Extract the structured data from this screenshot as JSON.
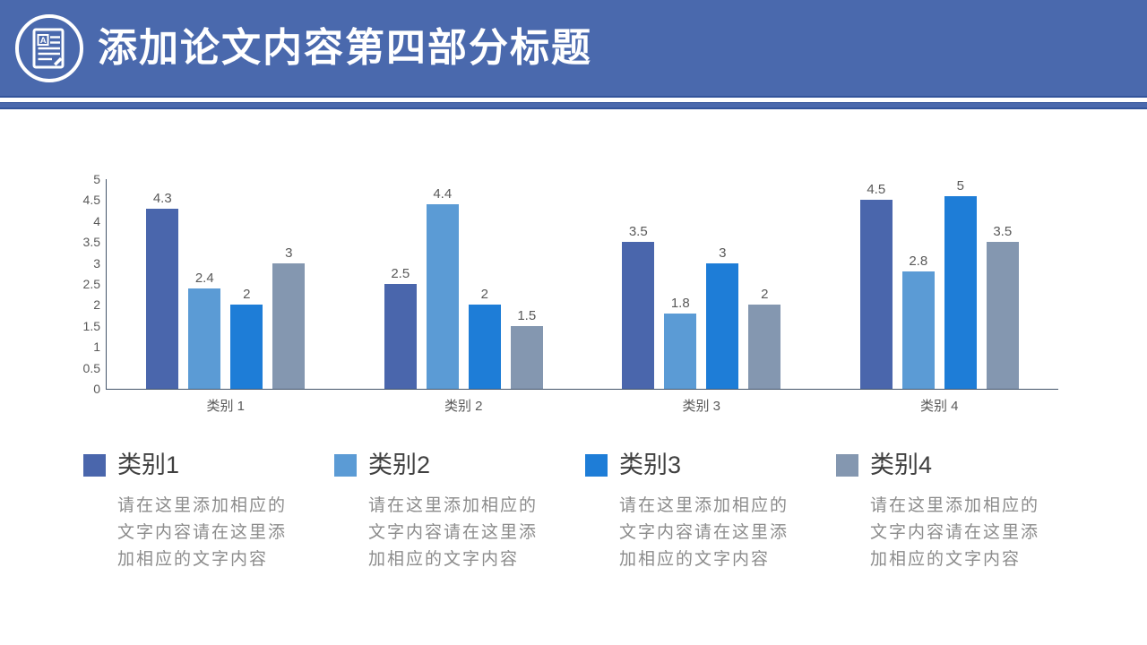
{
  "header": {
    "title": "添加论文内容第四部分标题",
    "icon": "document-pencil-icon",
    "background_color": "#4A69AD",
    "accent_line_color": "#33549B",
    "title_color": "#FFFFFF"
  },
  "chart_data": {
    "type": "bar",
    "title": "",
    "xlabel": "",
    "ylabel": "",
    "categories": [
      "类别 1",
      "类别 2",
      "类别 3",
      "类别 4"
    ],
    "series": [
      {
        "name": "类别1",
        "color": "#4A66AC",
        "values": [
          4.3,
          2.5,
          3.5,
          4.5
        ]
      },
      {
        "name": "类别2",
        "color": "#5B9BD5",
        "values": [
          2.4,
          4.4,
          1.8,
          2.8
        ]
      },
      {
        "name": "类别3",
        "color": "#1E7DD7",
        "values": [
          2,
          2,
          3,
          5
        ]
      },
      {
        "name": "类别4",
        "color": "#8497B0",
        "values": [
          3,
          1.5,
          2,
          3.5
        ]
      }
    ],
    "ylim": [
      0,
      5
    ],
    "y_ticks": [
      "5",
      "4.5",
      "4",
      "3.5",
      "3",
      "2.5",
      "2",
      "1.5",
      "1",
      "0.5",
      "0"
    ],
    "grid": false,
    "data_labels": true,
    "legend_position": "bottom",
    "axis_color": "#44546A",
    "label_color": "#595959"
  },
  "legend": {
    "items": [
      {
        "label": "类别1",
        "color": "#4A66AC",
        "description": "请在这里添加相应的文字内容请在这里添加相应的文字内容"
      },
      {
        "label": "类别2",
        "color": "#5B9BD5",
        "description": "请在这里添加相应的文字内容请在这里添加相应的文字内容"
      },
      {
        "label": "类别3",
        "color": "#1E7DD7",
        "description": "请在这里添加相应的文字内容请在这里添加相应的文字内容"
      },
      {
        "label": "类别4",
        "color": "#8497B0",
        "description": "请在这里添加相应的文字内容请在这里添加相应的文字内容"
      }
    ]
  }
}
